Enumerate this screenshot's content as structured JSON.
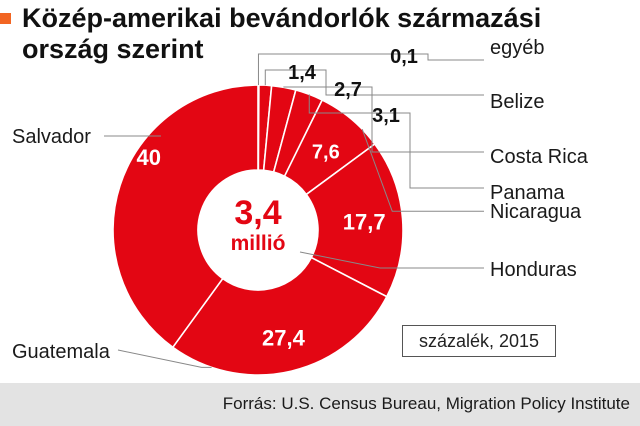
{
  "title_lines": [
    "Közép-amerikai bevándorlók származási",
    "ország szerint"
  ],
  "center_label": {
    "value": "3,4",
    "unit": "millió"
  },
  "unit_note": "százalék, 2015",
  "source": "Forrás: U.S. Census Bureau, Migration Policy Institute",
  "colors": {
    "slice": "#e30613",
    "accent": "#f26522",
    "footer": "#e3e3e3"
  },
  "chart_data": {
    "type": "pie",
    "variant": "donut",
    "total_label": "3,4 millió",
    "unit": "százalék, 2015",
    "slices": [
      {
        "name": "egyéb",
        "value": 0.1,
        "value_label": "0,1"
      },
      {
        "name": "Belize",
        "value": 1.4,
        "value_label": "1,4"
      },
      {
        "name": "Costa Rica",
        "value": 2.7,
        "value_label": "2,7"
      },
      {
        "name": "Panama",
        "value": 3.1,
        "value_label": "3,1"
      },
      {
        "name": "Nicaragua",
        "value": 7.6,
        "value_label": "7,6"
      },
      {
        "name": "Honduras",
        "value": 17.7,
        "value_label": "17,7"
      },
      {
        "name": "Guatemala",
        "value": 27.4,
        "value_label": "27,4"
      },
      {
        "name": "Salvador",
        "value": 40,
        "value_label": "40"
      }
    ]
  }
}
